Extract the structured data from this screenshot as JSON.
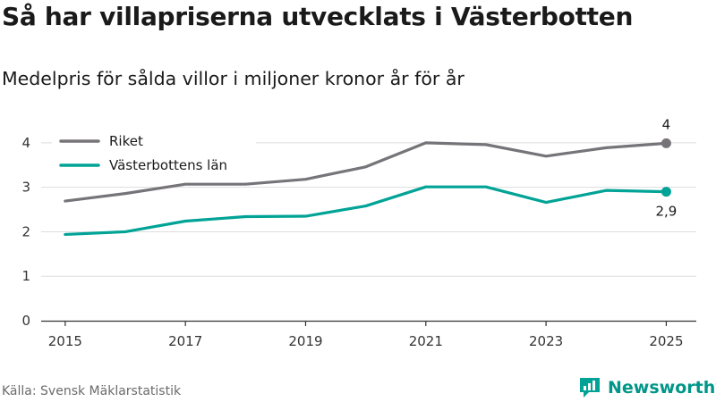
{
  "title": "Så har villapriserna utvecklats i Västerbotten",
  "subtitle": "Medelpris för sålda villor i miljoner kronor år för år",
  "source": "Källa: Svensk Mäklarstatistik",
  "logo": {
    "text": "Newsworthy",
    "icon": "newsworthy-logo-icon"
  },
  "colors": {
    "riket": "#767478",
    "lan": "#00a396",
    "grid": "#dddddd",
    "axis": "#333333"
  },
  "chart_data": {
    "type": "line",
    "title": "Så har villapriserna utvecklats i Västerbotten",
    "subtitle": "Medelpris för sålda villor i miljoner kronor år för år",
    "xlabel": "",
    "ylabel": "",
    "x": [
      2015,
      2016,
      2017,
      2018,
      2019,
      2020,
      2021,
      2022,
      2023,
      2024,
      2025
    ],
    "x_ticks": [
      "2015",
      "2017",
      "2019",
      "2021",
      "2023",
      "2025"
    ],
    "y_ticks": [
      "0",
      "1",
      "2",
      "3",
      "4"
    ],
    "ylim": [
      0,
      4.5
    ],
    "xlim": [
      2014.6,
      2025.5
    ],
    "grid": true,
    "legend_position": "top-left",
    "series": [
      {
        "name": "Riket",
        "color": "#767478",
        "values": [
          2.69,
          2.86,
          3.07,
          3.07,
          3.18,
          3.46,
          4.0,
          3.96,
          3.7,
          3.89,
          3.99
        ],
        "end_label": "4",
        "end_label_position": "above"
      },
      {
        "name": "Västerbottens län",
        "color": "#00a396",
        "values": [
          1.94,
          2.0,
          2.24,
          2.34,
          2.35,
          2.58,
          3.01,
          3.01,
          2.66,
          2.93,
          2.9
        ],
        "end_label": "2,9",
        "end_label_position": "below"
      }
    ]
  }
}
